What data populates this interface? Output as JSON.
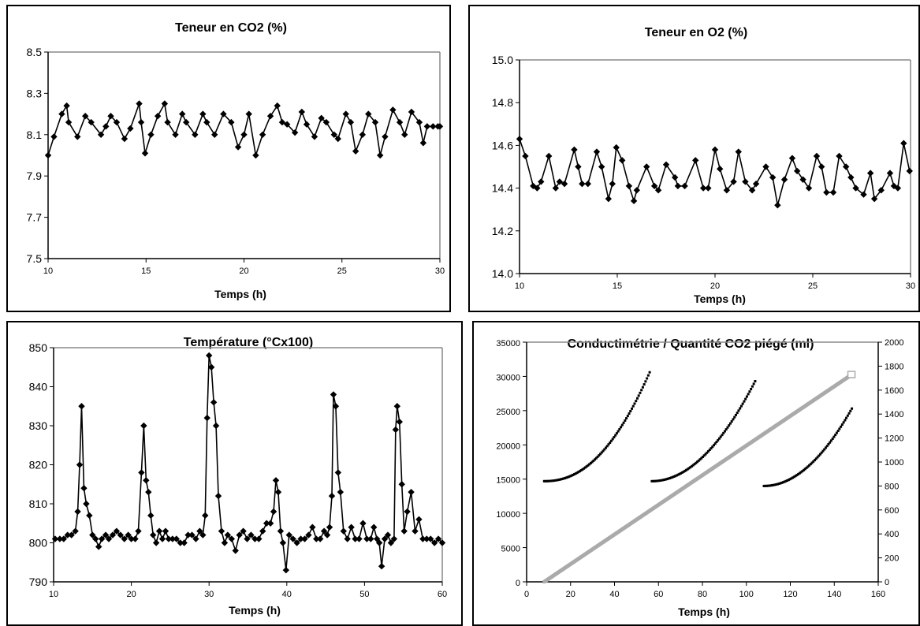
{
  "chart_data": [
    {
      "id": "co2",
      "type": "line",
      "title": "Teneur en CO2 (%)",
      "xlabel": "Temps (h)",
      "ylabel": "",
      "xlim": [
        10,
        30
      ],
      "ylim": [
        7.5,
        8.5
      ],
      "xticks": [
        10,
        15,
        20,
        25,
        30
      ],
      "yticks": [
        "7.5",
        "7.7",
        "7.9",
        "8.1",
        "8.3",
        "8.5"
      ],
      "marker": "diamond",
      "color": "#000000",
      "x": [
        10.0,
        10.3,
        10.7,
        10.95,
        11.05,
        11.5,
        11.9,
        12.2,
        12.7,
        12.95,
        13.2,
        13.5,
        13.9,
        14.2,
        14.65,
        14.75,
        14.95,
        15.25,
        15.6,
        15.95,
        16.1,
        16.5,
        16.85,
        17.05,
        17.5,
        17.9,
        18.1,
        18.5,
        18.95,
        19.35,
        19.7,
        20.0,
        20.25,
        20.6,
        20.95,
        21.35,
        21.7,
        21.95,
        22.2,
        22.6,
        22.95,
        23.2,
        23.6,
        23.95,
        24.2,
        24.6,
        24.8,
        25.2,
        25.45,
        25.7,
        26.05,
        26.35,
        26.7,
        26.95,
        27.2,
        27.6,
        27.95,
        28.2,
        28.55,
        28.95,
        29.15,
        29.35,
        29.65,
        29.9,
        30.0
      ],
      "y": [
        8.0,
        8.09,
        8.2,
        8.24,
        8.16,
        8.09,
        8.19,
        8.16,
        8.1,
        8.14,
        8.19,
        8.16,
        8.08,
        8.13,
        8.25,
        8.16,
        8.01,
        8.1,
        8.19,
        8.25,
        8.16,
        8.1,
        8.2,
        8.16,
        8.1,
        8.2,
        8.16,
        8.1,
        8.2,
        8.16,
        8.04,
        8.1,
        8.2,
        8.0,
        8.1,
        8.19,
        8.24,
        8.16,
        8.15,
        8.11,
        8.21,
        8.15,
        8.09,
        8.18,
        8.16,
        8.1,
        8.08,
        8.2,
        8.16,
        8.02,
        8.1,
        8.2,
        8.16,
        8.0,
        8.09,
        8.22,
        8.16,
        8.1,
        8.21,
        8.16,
        8.06,
        8.14,
        8.14,
        8.14,
        8.14
      ]
    },
    {
      "id": "o2",
      "type": "line",
      "title": "Teneur en O2 (%)",
      "xlabel": "Temps (h)",
      "ylabel": "",
      "xlim": [
        10,
        30
      ],
      "ylim": [
        14.0,
        15.0
      ],
      "xticks": [
        10,
        15,
        20,
        25,
        30
      ],
      "yticks": [
        "14.0",
        "14.2",
        "14.4",
        "14.6",
        "14.8",
        "15.0"
      ],
      "marker": "diamond",
      "color": "#000000",
      "x": [
        10.0,
        10.3,
        10.7,
        10.9,
        11.1,
        11.5,
        11.85,
        12.05,
        12.3,
        12.8,
        13.0,
        13.2,
        13.5,
        13.95,
        14.2,
        14.55,
        14.75,
        14.95,
        15.25,
        15.6,
        15.85,
        16.0,
        16.5,
        16.9,
        17.1,
        17.5,
        17.95,
        18.1,
        18.45,
        19.0,
        19.4,
        19.65,
        20.0,
        20.25,
        20.6,
        20.95,
        21.2,
        21.55,
        21.9,
        22.1,
        22.6,
        22.95,
        23.2,
        23.55,
        23.95,
        24.2,
        24.5,
        24.8,
        25.2,
        25.45,
        25.7,
        26.05,
        26.35,
        26.7,
        26.95,
        27.2,
        27.6,
        27.95,
        28.15,
        28.5,
        28.95,
        29.15,
        29.35,
        29.65,
        29.95
      ],
      "y": [
        14.63,
        14.55,
        14.41,
        14.4,
        14.43,
        14.55,
        14.4,
        14.43,
        14.42,
        14.58,
        14.5,
        14.42,
        14.42,
        14.57,
        14.5,
        14.35,
        14.42,
        14.59,
        14.53,
        14.41,
        14.34,
        14.39,
        14.5,
        14.41,
        14.39,
        14.51,
        14.45,
        14.41,
        14.41,
        14.53,
        14.4,
        14.4,
        14.58,
        14.49,
        14.39,
        14.43,
        14.57,
        14.43,
        14.39,
        14.42,
        14.5,
        14.45,
        14.32,
        14.44,
        14.54,
        14.48,
        14.44,
        14.4,
        14.55,
        14.5,
        14.38,
        14.38,
        14.55,
        14.5,
        14.45,
        14.4,
        14.37,
        14.47,
        14.35,
        14.39,
        14.47,
        14.41,
        14.4,
        14.61,
        14.48
      ]
    },
    {
      "id": "temperature",
      "type": "line",
      "title": "Température (°Cx100)",
      "xlabel": "Temps (h)",
      "ylabel": "",
      "xlim": [
        10,
        60
      ],
      "ylim": [
        790,
        850
      ],
      "xticks": [
        10,
        20,
        30,
        40,
        50,
        60
      ],
      "yticks": [
        "790",
        "800",
        "810",
        "820",
        "830",
        "840",
        "850"
      ],
      "marker": "diamond",
      "color": "#000000",
      "x": [
        10.2,
        10.8,
        11.3,
        11.8,
        12.3,
        12.8,
        13.1,
        13.35,
        13.6,
        13.9,
        14.2,
        14.6,
        15.0,
        15.4,
        15.8,
        16.2,
        16.7,
        17.1,
        17.6,
        18.1,
        18.6,
        19.1,
        19.6,
        20.0,
        20.5,
        20.9,
        21.3,
        21.6,
        21.9,
        22.2,
        22.5,
        22.8,
        23.2,
        23.6,
        24.0,
        24.4,
        24.8,
        25.3,
        25.8,
        26.3,
        26.8,
        27.3,
        27.8,
        28.3,
        28.8,
        29.2,
        29.5,
        29.75,
        30.0,
        30.3,
        30.6,
        30.9,
        31.2,
        31.6,
        32.0,
        32.4,
        32.9,
        33.4,
        33.9,
        34.4,
        34.9,
        35.4,
        35.9,
        36.4,
        36.9,
        37.4,
        37.9,
        38.3,
        38.6,
        38.9,
        39.2,
        39.5,
        39.9,
        40.3,
        40.8,
        41.3,
        41.8,
        42.3,
        42.8,
        43.3,
        43.8,
        44.3,
        44.8,
        45.2,
        45.5,
        45.8,
        46.0,
        46.3,
        46.6,
        46.9,
        47.3,
        47.8,
        48.3,
        48.8,
        49.3,
        49.8,
        50.3,
        50.8,
        51.2,
        51.6,
        51.9,
        52.2,
        52.6,
        53.0,
        53.4,
        53.8,
        54.0,
        54.2,
        54.5,
        54.8,
        55.1,
        55.5,
        56.0,
        56.5,
        57.0,
        57.5,
        58.0,
        58.5,
        59.0,
        59.5,
        60.0
      ],
      "y": [
        801,
        801,
        801,
        802,
        802,
        803,
        808,
        820,
        835,
        814,
        810,
        807,
        802,
        801,
        799,
        801,
        802,
        801,
        802,
        803,
        802,
        801,
        802,
        801,
        801,
        803,
        818,
        830,
        816,
        813,
        807,
        802,
        800,
        803,
        801,
        803,
        801,
        801,
        801,
        800,
        800,
        802,
        802,
        801,
        803,
        802,
        807,
        832,
        848,
        845,
        836,
        830,
        812,
        803,
        800,
        802,
        801,
        798,
        802,
        803,
        801,
        802,
        801,
        801,
        803,
        805,
        805,
        808,
        816,
        813,
        803,
        800,
        793,
        802,
        801,
        800,
        801,
        801,
        802,
        804,
        801,
        801,
        803,
        802,
        804,
        812,
        838,
        835,
        818,
        813,
        803,
        801,
        804,
        801,
        801,
        805,
        801,
        801,
        804,
        801,
        800,
        794,
        801,
        802,
        800,
        801,
        829,
        835,
        831,
        815,
        803,
        808,
        813,
        803,
        806,
        801,
        801,
        801,
        800,
        801,
        800
      ]
    },
    {
      "id": "conductimetrie",
      "type": "scatter",
      "title": "Conductimétrie / Quantité CO2 piégé (ml)",
      "xlabel": "Temps (h)",
      "ylabel": "",
      "xlim": [
        0,
        160
      ],
      "ylim": [
        0,
        35000
      ],
      "y2lim": [
        0,
        2000
      ],
      "xticks": [
        0,
        20,
        40,
        60,
        80,
        100,
        120,
        140,
        160
      ],
      "yticks": [
        "0",
        "5000",
        "10000",
        "15000",
        "20000",
        "25000",
        "30000",
        "35000"
      ],
      "y2ticks": [
        "0",
        "200",
        "400",
        "600",
        "800",
        "1000",
        "1200",
        "1400",
        "1600",
        "1800",
        "2000"
      ],
      "series": [
        {
          "axis": "left",
          "color": "#000000",
          "marker": "square",
          "x_start": 8,
          "x_end": 56,
          "y_start": 14700,
          "y_end": 30600,
          "curve": 2.2
        },
        {
          "axis": "left",
          "color": "#000000",
          "marker": "square",
          "x_start": 57,
          "x_end": 104,
          "y_start": 14700,
          "y_end": 29300,
          "curve": 2.0
        },
        {
          "axis": "left",
          "color": "#000000",
          "marker": "square",
          "x_start": 108,
          "x_end": 148,
          "y_start": 14000,
          "y_end": 25300,
          "curve": 2.0
        },
        {
          "axis": "right",
          "color": "#aaaaaa",
          "marker": "square",
          "x_start": 8,
          "x_end": 148,
          "y_start": 0,
          "y_end": 1730,
          "curve": 1.0
        }
      ]
    }
  ]
}
